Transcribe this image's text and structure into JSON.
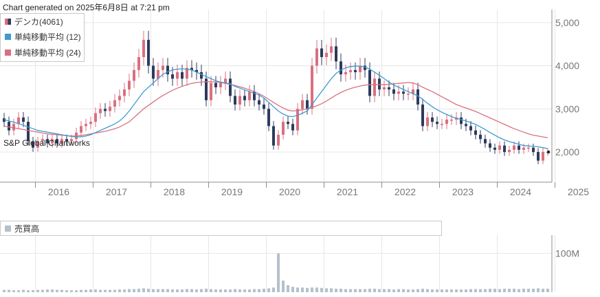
{
  "header": {
    "generated": "Chart generated on 2025年6月8日 at 7:21 pm"
  },
  "legend": {
    "items": [
      {
        "label": "デンカ(4061)",
        "color": "#2d3a5c",
        "color2": "#d9707f"
      },
      {
        "label": "単純移動平均 (12)",
        "color": "#3d9ad1"
      },
      {
        "label": "単純移動平均 (24)",
        "color": "#d9707f"
      }
    ]
  },
  "watermark": "S&P Global Chartworks",
  "volume_legend": {
    "label": "売買高",
    "color": "#b5c0cc"
  },
  "chart_data": {
    "type": "candlestick",
    "interval": "monthly",
    "xlabel": "",
    "ylabel": "",
    "ylim": [
      1300,
      5300
    ],
    "yticks": [
      2000,
      3000,
      4000,
      5000
    ],
    "ytick_labels": [
      "2,000",
      "3,000",
      "4,000",
      "5,000"
    ],
    "xtick_labels": [
      "2016",
      "2017",
      "2018",
      "2019",
      "2020",
      "2021",
      "2022",
      "2023",
      "2024",
      "2025"
    ],
    "start": "2015-06",
    "close": [
      2700,
      2500,
      2650,
      2800,
      2700,
      2250,
      2100,
      2250,
      2300,
      2200,
      2300,
      2200,
      2300,
      2250,
      2300,
      2450,
      2600,
      2650,
      2700,
      2900,
      3000,
      2950,
      3050,
      3200,
      3300,
      3450,
      3650,
      3900,
      4200,
      4600,
      4000,
      3700,
      3900,
      4000,
      3800,
      3700,
      3850,
      3700,
      3950,
      3900,
      3850,
      3700,
      3200,
      3600,
      3500,
      3600,
      3700,
      3300,
      3100,
      3300,
      3200,
      3400,
      3200,
      3100,
      3000,
      2600,
      2150,
      2400,
      2700,
      2650,
      2500,
      3000,
      3200,
      3000,
      4000,
      4400,
      4200,
      4300,
      4450,
      4100,
      3800,
      3850,
      3900,
      3850,
      4000,
      3900,
      3300,
      3700,
      3450,
      3500,
      3450,
      3350,
      3400,
      3350,
      3350,
      3450,
      3100,
      2600,
      2800,
      2700,
      2650,
      2650,
      2750,
      2750,
      2800,
      2650,
      2600,
      2500,
      2400,
      2300,
      2200,
      2100,
      2050,
      2150,
      2000,
      2050,
      2150,
      2050,
      2100,
      2100,
      2000,
      1800,
      2000,
      2000
    ],
    "sma12": [
      2750,
      2720,
      2690,
      2660,
      2620,
      2580,
      2540,
      2500,
      2480,
      2460,
      2440,
      2420,
      2400,
      2380,
      2360,
      2350,
      2350,
      2370,
      2400,
      2450,
      2500,
      2550,
      2600,
      2650,
      2720,
      2820,
      2950,
      3100,
      3250,
      3400,
      3500,
      3600,
      3700,
      3800,
      3860,
      3900,
      3920,
      3930,
      3920,
      3900,
      3850,
      3800,
      3750,
      3700,
      3650,
      3620,
      3600,
      3580,
      3520,
      3480,
      3440,
      3400,
      3360,
      3320,
      3250,
      3150,
      3050,
      2950,
      2880,
      2830,
      2820,
      2850,
      2900,
      2950,
      3100,
      3250,
      3400,
      3550,
      3700,
      3820,
      3900,
      3950,
      3980,
      3990,
      3990,
      3970,
      3920,
      3850,
      3780,
      3700,
      3620,
      3550,
      3500,
      3450,
      3400,
      3350,
      3300,
      3220,
      3130,
      3050,
      2980,
      2920,
      2870,
      2820,
      2780,
      2750,
      2720,
      2680,
      2640,
      2580,
      2520,
      2450,
      2390,
      2330,
      2280,
      2240,
      2210,
      2180,
      2150,
      2140,
      2130,
      2120,
      2100,
      2080
    ],
    "sma24": [
      2600,
      2580,
      2560,
      2540,
      2520,
      2500,
      2480,
      2460,
      2440,
      2420,
      2410,
      2400,
      2390,
      2380,
      2370,
      2370,
      2380,
      2400,
      2420,
      2440,
      2460,
      2480,
      2510,
      2540,
      2580,
      2640,
      2700,
      2800,
      2900,
      3000,
      3080,
      3160,
      3240,
      3310,
      3370,
      3430,
      3480,
      3520,
      3560,
      3590,
      3610,
      3620,
      3630,
      3630,
      3620,
      3610,
      3590,
      3570,
      3540,
      3510,
      3480,
      3440,
      3400,
      3350,
      3290,
      3220,
      3150,
      3080,
      3020,
      2970,
      2950,
      2960,
      2980,
      3000,
      3030,
      3070,
      3120,
      3180,
      3250,
      3320,
      3380,
      3430,
      3470,
      3500,
      3530,
      3550,
      3560,
      3560,
      3560,
      3560,
      3570,
      3580,
      3590,
      3600,
      3610,
      3600,
      3560,
      3500,
      3450,
      3400,
      3340,
      3280,
      3220,
      3160,
      3100,
      3060,
      3020,
      2980,
      2940,
      2890,
      2840,
      2790,
      2740,
      2690,
      2640,
      2590,
      2540,
      2500,
      2460,
      2420,
      2390,
      2370,
      2350,
      2330
    ],
    "volume": [
      6,
      6,
      5,
      5,
      6,
      5,
      5,
      6,
      6,
      7,
      7,
      6,
      6,
      5,
      5,
      5,
      6,
      6,
      7,
      7,
      6,
      6,
      6,
      6,
      7,
      7,
      8,
      8,
      9,
      10,
      9,
      8,
      8,
      8,
      8,
      7,
      7,
      7,
      8,
      8,
      7,
      8,
      9,
      8,
      7,
      7,
      7,
      7,
      8,
      7,
      7,
      7,
      8,
      8,
      9,
      10,
      12,
      100,
      30,
      18,
      14,
      12,
      12,
      11,
      12,
      12,
      11,
      10,
      10,
      9,
      9,
      8,
      8,
      8,
      8,
      8,
      9,
      9,
      8,
      8,
      8,
      7,
      8,
      8,
      7,
      7,
      8,
      9,
      8,
      7,
      7,
      7,
      7,
      7,
      7,
      7,
      7,
      8,
      8,
      8,
      8,
      9,
      9,
      8,
      9,
      9,
      9,
      8,
      9,
      9,
      9,
      10,
      9,
      9
    ],
    "volume_axis": {
      "label": "100M",
      "value": 100
    }
  },
  "colors": {
    "up": "#d9707f",
    "down": "#2d3a5c",
    "sma12": "#3d9ad1",
    "sma24": "#d9707f",
    "grid": "#e6e6e6",
    "axis": "#8c8c8c"
  }
}
